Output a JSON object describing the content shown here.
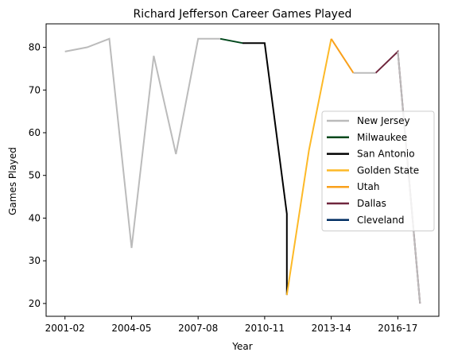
{
  "chart_data": {
    "type": "line",
    "title": "Richard Jefferson Career Games Played",
    "xlabel": "Year",
    "ylabel": "Games Played",
    "ylim": [
      17,
      85.5
    ],
    "y_ticks": [
      20,
      30,
      40,
      50,
      60,
      70,
      80
    ],
    "x_ticks": [
      "2001-02",
      "2004-05",
      "2007-08",
      "2010-11",
      "2013-14",
      "2016-17"
    ],
    "legend_position": "center-right",
    "grid": false,
    "series": [
      {
        "name": "New Jersey",
        "color": "#bbbbbb",
        "points": [
          {
            "season": "2001-02",
            "games": 79
          },
          {
            "season": "2002-03",
            "games": 80
          },
          {
            "season": "2003-04",
            "games": 82
          },
          {
            "season": "2004-05",
            "games": 33
          },
          {
            "season": "2005-06",
            "games": 78
          },
          {
            "season": "2006-07",
            "games": 55
          },
          {
            "season": "2007-08",
            "games": 82
          },
          {
            "season": "2008-09",
            "games": 82
          }
        ]
      },
      {
        "name": "Milwaukee",
        "color": "#00471b",
        "points": [
          {
            "season": "2008-09",
            "games": 82
          },
          {
            "season": "2009-10",
            "games": 81
          }
        ]
      },
      {
        "name": "San Antonio",
        "color": "#000000",
        "points": [
          {
            "season": "2009-10",
            "games": 81
          },
          {
            "season": "2010-11",
            "games": 81
          },
          {
            "season": "2011-12",
            "games": 41
          },
          {
            "season": "2011-12",
            "games": 22
          }
        ]
      },
      {
        "name": "Golden State",
        "color": "#fdb927",
        "points": [
          {
            "season": "2011-12",
            "games": 22
          },
          {
            "season": "2012-13",
            "games": 56
          },
          {
            "season": "2013-14",
            "games": 82
          }
        ]
      },
      {
        "name": "Utah",
        "color": "#f9a01b",
        "points": [
          {
            "season": "2013-14",
            "games": 82
          },
          {
            "season": "2014-15",
            "games": 74
          }
        ]
      },
      {
        "name": "Dallas",
        "color": "#6f263d",
        "points": [
          {
            "season": "2015-16",
            "games": 74
          },
          {
            "season": "2016-17",
            "games": 79
          },
          {
            "season": "2017-18",
            "games": 20
          }
        ]
      },
      {
        "name": "Cleveland",
        "color": "#002d62",
        "points": []
      },
      {
        "name": "",
        "color": "#bbbbbb",
        "points": [
          {
            "season": "2014-15",
            "games": 74
          },
          {
            "season": "2015-16",
            "games": 74
          }
        ]
      },
      {
        "name": "",
        "color": "#bbbbbb",
        "points": [
          {
            "season": "2016-17",
            "games": 79
          },
          {
            "season": "2017-18",
            "games": 20
          }
        ]
      }
    ]
  }
}
